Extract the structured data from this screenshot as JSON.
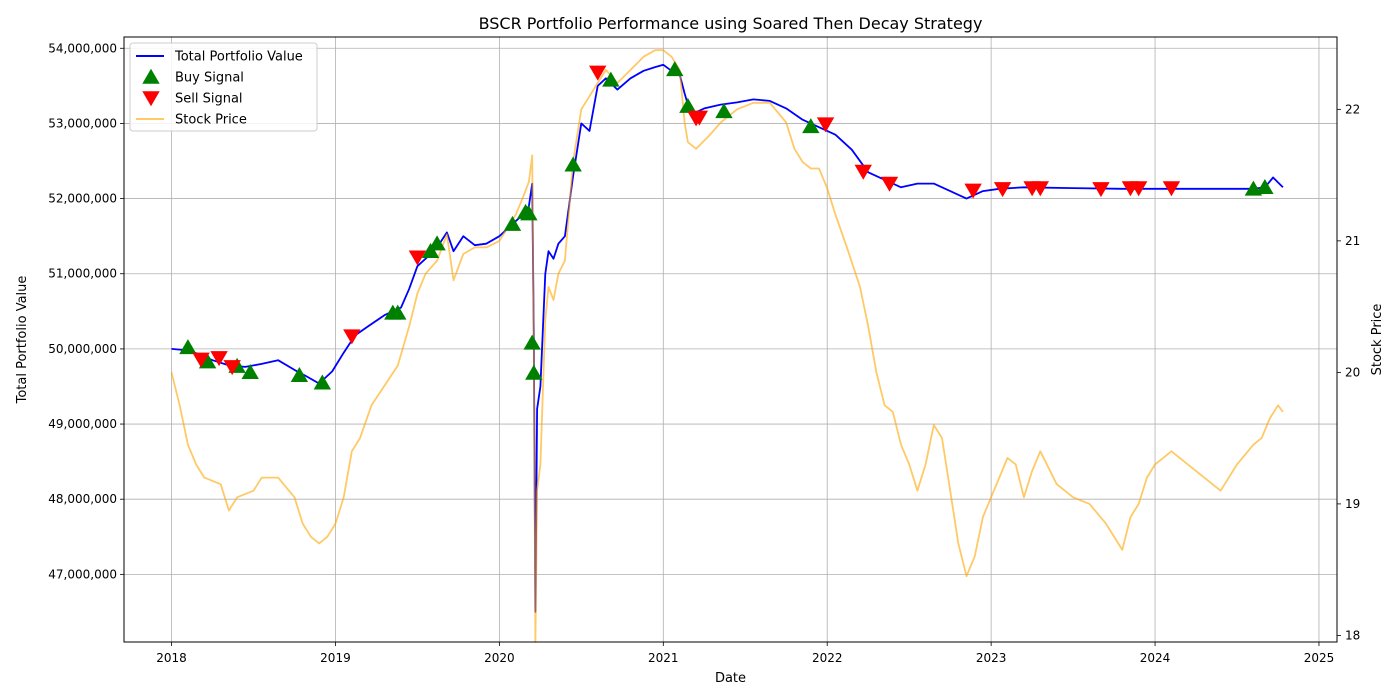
{
  "chart_data": {
    "type": "line",
    "title": "BSCR Portfolio Performance using Soared Then Decay Strategy",
    "xlabel": "Date",
    "ylabel": "Total Portfolio Value",
    "y2label": "Stock Price",
    "xlim": [
      2017.71,
      2025.11
    ],
    "ylim": [
      46100000,
      54150000
    ],
    "y2lim": [
      17.95,
      22.55
    ],
    "x_ticks": [
      2018,
      2019,
      2020,
      2021,
      2022,
      2023,
      2024,
      2025
    ],
    "x_tick_labels": [
      "2018",
      "2019",
      "2020",
      "2021",
      "2022",
      "2023",
      "2024",
      "2025"
    ],
    "y_ticks": [
      47000000,
      48000000,
      49000000,
      50000000,
      51000000,
      52000000,
      53000000,
      54000000
    ],
    "y_tick_labels": [
      "47,000,000",
      "48,000,000",
      "49,000,000",
      "50,000,000",
      "51,000,000",
      "52,000,000",
      "53,000,000",
      "54,000,000"
    ],
    "y2_ticks": [
      18,
      19,
      20,
      21,
      22
    ],
    "y2_tick_labels": [
      "18",
      "19",
      "20",
      "21",
      "22"
    ],
    "grid": true,
    "legend_position": "top-left",
    "legend": [
      {
        "label": "Total Portfolio Value",
        "kind": "line",
        "color": "#0000ff"
      },
      {
        "label": "Buy Signal",
        "kind": "triangle-up",
        "color": "#008000"
      },
      {
        "label": "Sell Signal",
        "kind": "triangle-down",
        "color": "#ff0000"
      },
      {
        "label": "Stock Price",
        "kind": "line",
        "color": "#ffa500"
      }
    ],
    "series": [
      {
        "name": "Total Portfolio Value",
        "axis": "left",
        "color": "#0000ff",
        "x": [
          2018.0,
          2018.1,
          2018.18,
          2018.25,
          2018.35,
          2018.45,
          2018.55,
          2018.65,
          2018.75,
          2018.82,
          2018.9,
          2018.98,
          2019.05,
          2019.12,
          2019.2,
          2019.3,
          2019.4,
          2019.45,
          2019.5,
          2019.55,
          2019.62,
          2019.68,
          2019.72,
          2019.78,
          2019.85,
          2019.92,
          2020.0,
          2020.05,
          2020.1,
          2020.15,
          2020.18,
          2020.2,
          2020.21,
          2020.22,
          2020.23,
          2020.25,
          2020.28,
          2020.3,
          2020.33,
          2020.36,
          2020.4,
          2020.45,
          2020.5,
          2020.55,
          2020.6,
          2020.65,
          2020.72,
          2020.8,
          2020.88,
          2020.95,
          2021.0,
          2021.05,
          2021.1,
          2021.13,
          2021.17,
          2021.2,
          2021.25,
          2021.35,
          2021.45,
          2021.55,
          2021.65,
          2021.75,
          2021.85,
          2021.95,
          2022.05,
          2022.15,
          2022.25,
          2022.35,
          2022.45,
          2022.55,
          2022.65,
          2022.75,
          2022.85,
          2022.95,
          2023.05,
          2023.2,
          2023.5,
          2023.8,
          2024.1,
          2024.4,
          2024.6,
          2024.67,
          2024.72,
          2024.78
        ],
        "values": [
          50000000,
          49980000,
          49920000,
          49850000,
          49780000,
          49760000,
          49800000,
          49850000,
          49720000,
          49640000,
          49540000,
          49700000,
          49950000,
          50180000,
          50300000,
          50450000,
          50550000,
          50800000,
          51100000,
          51200000,
          51350000,
          51550000,
          51300000,
          51500000,
          51380000,
          51400000,
          51500000,
          51600000,
          51700000,
          51800000,
          51900000,
          52200000,
          50200000,
          46500000,
          49200000,
          49500000,
          51000000,
          51300000,
          51200000,
          51400000,
          51500000,
          52300000,
          53000000,
          52900000,
          53500000,
          53600000,
          53450000,
          53600000,
          53700000,
          53750000,
          53780000,
          53700000,
          53650000,
          53400000,
          53100000,
          53150000,
          53200000,
          53250000,
          53280000,
          53320000,
          53300000,
          53200000,
          53050000,
          52950000,
          52850000,
          52650000,
          52350000,
          52250000,
          52150000,
          52200000,
          52200000,
          52100000,
          52000000,
          52100000,
          52130000,
          52150000,
          52140000,
          52130000,
          52130000,
          52130000,
          52130000,
          52150000,
          52280000,
          52150000
        ]
      },
      {
        "name": "Stock Price",
        "axis": "right",
        "color": "#ffa500",
        "x": [
          2018.0,
          2018.05,
          2018.1,
          2018.15,
          2018.2,
          2018.3,
          2018.35,
          2018.4,
          2018.5,
          2018.55,
          2018.65,
          2018.75,
          2018.8,
          2018.85,
          2018.9,
          2018.95,
          2019.0,
          2019.05,
          2019.1,
          2019.15,
          2019.22,
          2019.3,
          2019.38,
          2019.45,
          2019.5,
          2019.55,
          2019.62,
          2019.68,
          2019.72,
          2019.78,
          2019.85,
          2019.92,
          2020.0,
          2020.05,
          2020.1,
          2020.15,
          2020.18,
          2020.2,
          2020.21,
          2020.22,
          2020.23,
          2020.25,
          2020.28,
          2020.3,
          2020.33,
          2020.36,
          2020.4,
          2020.45,
          2020.5,
          2020.55,
          2020.6,
          2020.65,
          2020.72,
          2020.8,
          2020.88,
          2020.95,
          2021.0,
          2021.05,
          2021.1,
          2021.13,
          2021.15,
          2021.2,
          2021.28,
          2021.35,
          2021.45,
          2021.55,
          2021.65,
          2021.75,
          2021.8,
          2021.85,
          2021.9,
          2021.95,
          2022.0,
          2022.05,
          2022.12,
          2022.2,
          2022.25,
          2022.3,
          2022.35,
          2022.4,
          2022.45,
          2022.5,
          2022.55,
          2022.6,
          2022.65,
          2022.7,
          2022.75,
          2022.8,
          2022.85,
          2022.9,
          2022.95,
          2023.0,
          2023.05,
          2023.1,
          2023.15,
          2023.2,
          2023.25,
          2023.3,
          2023.4,
          2023.5,
          2023.6,
          2023.7,
          2023.8,
          2023.85,
          2023.9,
          2023.95,
          2024.0,
          2024.1,
          2024.2,
          2024.3,
          2024.4,
          2024.5,
          2024.6,
          2024.65,
          2024.7,
          2024.75,
          2024.78
        ],
        "values": [
          20.0,
          19.75,
          19.45,
          19.3,
          19.2,
          19.15,
          18.95,
          19.05,
          19.1,
          19.2,
          19.2,
          19.05,
          18.85,
          18.75,
          18.7,
          18.75,
          18.85,
          19.05,
          19.4,
          19.5,
          19.75,
          19.9,
          20.05,
          20.35,
          20.6,
          20.75,
          20.85,
          21.05,
          20.7,
          20.9,
          20.95,
          20.95,
          21.0,
          21.1,
          21.2,
          21.35,
          21.45,
          21.65,
          20.2,
          17.95,
          19.1,
          19.3,
          20.4,
          20.65,
          20.55,
          20.75,
          20.85,
          21.6,
          22.0,
          22.1,
          22.2,
          22.3,
          22.2,
          22.3,
          22.4,
          22.45,
          22.45,
          22.4,
          22.3,
          21.9,
          21.75,
          21.7,
          21.8,
          21.9,
          22.0,
          22.05,
          22.05,
          21.9,
          21.7,
          21.6,
          21.55,
          21.55,
          21.4,
          21.2,
          20.95,
          20.65,
          20.35,
          20.0,
          19.75,
          19.7,
          19.45,
          19.3,
          19.1,
          19.3,
          19.6,
          19.5,
          19.1,
          18.7,
          18.45,
          18.6,
          18.9,
          19.05,
          19.2,
          19.35,
          19.3,
          19.05,
          19.25,
          19.4,
          19.15,
          19.05,
          19.0,
          18.85,
          18.65,
          18.9,
          19.0,
          19.2,
          19.3,
          19.4,
          19.3,
          19.2,
          19.1,
          19.3,
          19.45,
          19.5,
          19.65,
          19.75,
          19.7
        ]
      }
    ],
    "markers": [
      {
        "name": "Buy Signal",
        "axis": "left",
        "color": "#008000",
        "shape": "triangle-up",
        "x": [
          2018.1,
          2018.22,
          2018.4,
          2018.48,
          2018.78,
          2018.92,
          2019.35,
          2019.38,
          2019.58,
          2019.62,
          2020.08,
          2020.16,
          2020.18,
          2020.2,
          2020.21,
          2020.45,
          2020.68,
          2021.07,
          2021.15,
          2021.37,
          2021.9,
          2024.6,
          2024.67
        ],
        "values": [
          50020000,
          49830000,
          49770000,
          49690000,
          49650000,
          49550000,
          50480000,
          50480000,
          51300000,
          51400000,
          51660000,
          51820000,
          51800000,
          50080000,
          49680000,
          52450000,
          53580000,
          53720000,
          53230000,
          53160000,
          52960000,
          52130000,
          52150000
        ]
      },
      {
        "name": "Sell Signal",
        "axis": "left",
        "color": "#ff0000",
        "shape": "triangle-down",
        "x": [
          2018.18,
          2018.29,
          2018.37,
          2019.1,
          2019.5,
          2020.6,
          2021.2,
          2021.22,
          2021.99,
          2022.22,
          2022.38,
          2022.89,
          2023.07,
          2023.25,
          2023.3,
          2023.67,
          2023.85,
          2023.9,
          2024.1
        ],
        "values": [
          49860000,
          49880000,
          49760000,
          50170000,
          51220000,
          53680000,
          53070000,
          53080000,
          52990000,
          52360000,
          52200000,
          52110000,
          52130000,
          52140000,
          52140000,
          52130000,
          52140000,
          52140000,
          52140000
        ]
      }
    ]
  }
}
